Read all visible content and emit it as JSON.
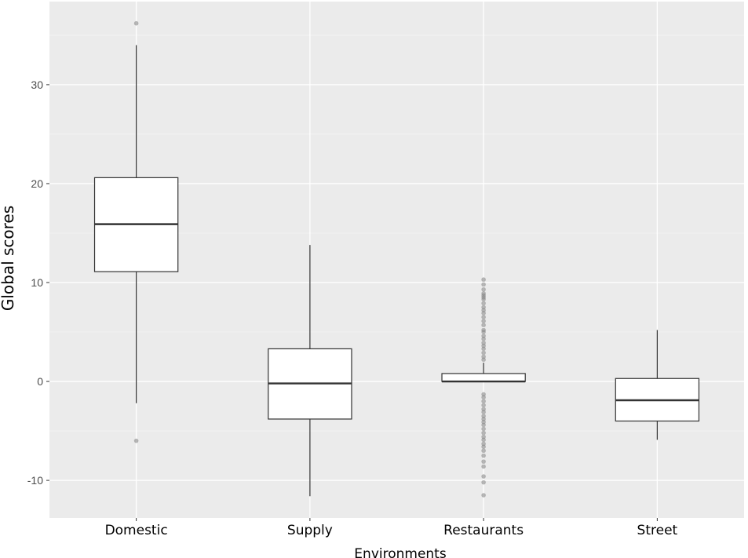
{
  "chart_data": {
    "type": "box",
    "xlabel": "Environments",
    "ylabel": "Global scores",
    "ylim": [
      -13.8,
      38.4
    ],
    "yticks": [
      -10,
      0,
      10,
      20,
      30
    ],
    "grid": true,
    "categories": [
      "Domestic",
      "Supply",
      "Restaurants",
      "Street"
    ],
    "boxes": [
      {
        "category": "Domestic",
        "whisker_low": -2.2,
        "q1": 11.1,
        "median": 15.9,
        "q3": 20.6,
        "whisker_high": 34.0,
        "outliers": [
          36.2,
          -6.0
        ]
      },
      {
        "category": "Supply",
        "whisker_low": -11.6,
        "q1": -3.8,
        "median": -0.2,
        "q3": 3.3,
        "whisker_high": 13.8,
        "outliers": []
      },
      {
        "category": "Restaurants",
        "whisker_low": 0.0,
        "q1": 0.0,
        "median": 0.0,
        "q3": 0.8,
        "whisker_high": 1.9,
        "outliers": [
          10.3,
          9.8,
          9.3,
          8.9,
          8.7,
          8.5,
          8.3,
          7.9,
          7.5,
          7.2,
          6.9,
          6.5,
          6.1,
          5.7,
          5.2,
          5.0,
          4.6,
          4.3,
          3.9,
          3.6,
          3.3,
          2.9,
          2.5,
          2.2,
          -1.3,
          -1.6,
          -2.0,
          -2.4,
          -2.8,
          -3.1,
          -3.5,
          -3.8,
          -4.1,
          -4.4,
          -4.8,
          -5.2,
          -5.6,
          -5.9,
          -6.3,
          -6.6,
          -7.0,
          -7.5,
          -8.1,
          -8.6,
          -9.6,
          -10.2,
          -11.5
        ]
      },
      {
        "category": "Street",
        "whisker_low": -5.9,
        "q1": -4.0,
        "median": -1.9,
        "q3": 0.3,
        "whisker_high": 5.2,
        "outliers": []
      }
    ],
    "colors": {
      "panel_background": "#ebebeb",
      "grid_major": "#ffffff",
      "grid_minor": "#f5f5f5",
      "box_fill": "#ffffff",
      "box_stroke": "#333333",
      "outlier": "#7f7f7f"
    }
  }
}
